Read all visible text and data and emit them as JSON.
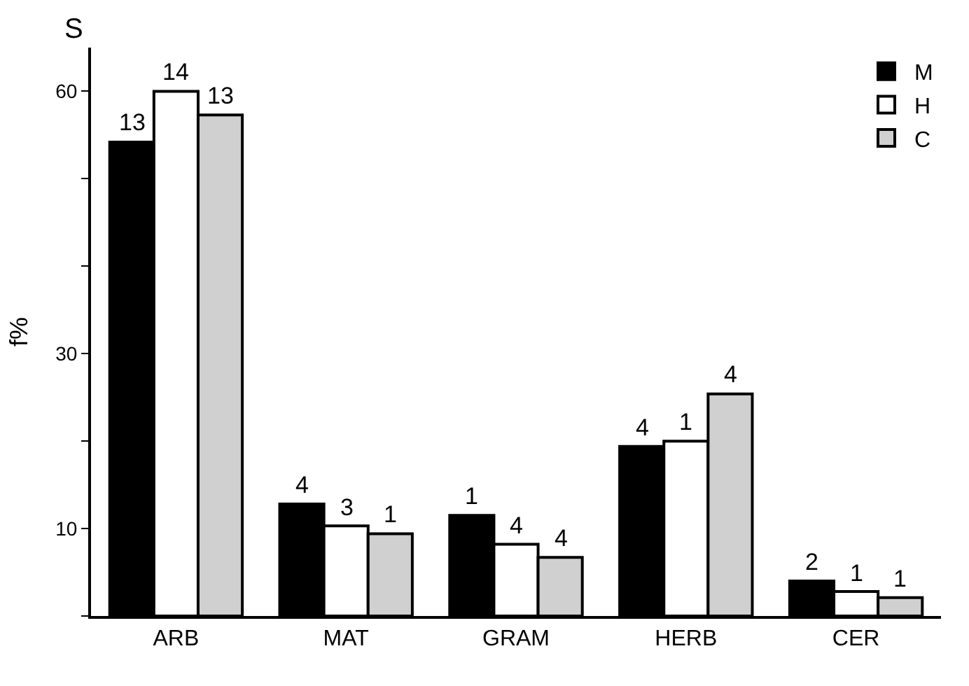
{
  "chart_data": {
    "type": "bar",
    "ylabel": "f%",
    "annotations": [
      "S",
      "13",
      "14",
      "13",
      "4",
      "3",
      "1",
      "1",
      "4",
      "4",
      "4",
      "1",
      "4",
      "2",
      "1",
      "1"
    ],
    "categories": [
      "ARB",
      "MAT",
      "GRAM",
      "HERB",
      "CER"
    ],
    "series": [
      {
        "name": "M",
        "color": "#000000",
        "values": [
          54.2,
          12.8,
          11.5,
          19.4,
          4.0
        ]
      },
      {
        "name": "H",
        "color": "#ffffff",
        "values": [
          60,
          10.3,
          8.2,
          20,
          2.8
        ]
      },
      {
        "name": "C",
        "color": "#d0d0d0",
        "values": [
          57.3,
          9.4,
          6.7,
          25.4,
          2.1
        ]
      }
    ],
    "ylim": [
      0,
      65
    ],
    "yticks": [
      {
        "value": 0,
        "label": null
      },
      10,
      {
        "value": 20,
        "label": null
      },
      30,
      {
        "value": 40,
        "label": null
      },
      {
        "value": 50,
        "label": null
      },
      60
    ],
    "legend": "top right"
  }
}
